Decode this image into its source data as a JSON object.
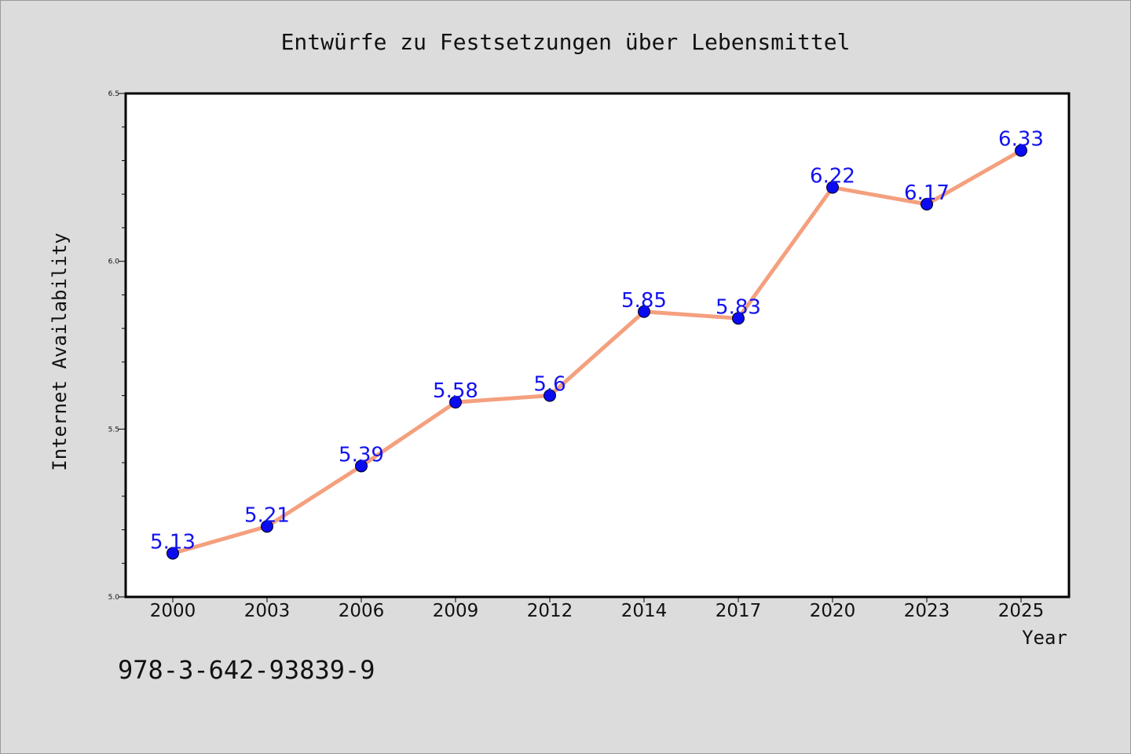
{
  "chart_data": {
    "type": "line",
    "title": "Entwürfe zu Festsetzungen über Lebensmittel",
    "xlabel": "Year",
    "ylabel": "Internet Availability",
    "categories": [
      "2000",
      "2003",
      "2006",
      "2009",
      "2012",
      "2014",
      "2017",
      "2020",
      "2023",
      "2025"
    ],
    "series": [
      {
        "values": [
          5.13,
          5.21,
          5.39,
          5.58,
          5.6,
          5.85,
          5.83,
          6.22,
          6.17,
          6.33
        ]
      }
    ],
    "data_labels": [
      "5.13",
      "5.21",
      "5.39",
      "5.58",
      "5.6",
      "5.85",
      "5.83",
      "6.22",
      "6.17",
      "6.33"
    ],
    "ylim": [
      5.0,
      6.5
    ],
    "yticks": [
      "5.0",
      "5.5",
      "6.0",
      "6.5"
    ],
    "grid": false,
    "line_color": "#f4a07e",
    "marker_color": "#0b0bf0",
    "label_color": "#1212f0"
  },
  "footer": {
    "isbn": "978-3-642-93839-9"
  }
}
